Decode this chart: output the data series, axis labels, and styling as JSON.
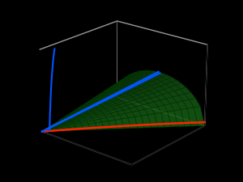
{
  "background_color": "#000000",
  "grid_color": "#999999",
  "surface_facecolor": "#228B22",
  "surface_edgecolor": "#003300",
  "surface_alpha": 0.9,
  "blue_color": "#0055ff",
  "red_color": "#ff2200",
  "green_color": "#00cc00",
  "figsize": [
    3.0,
    2.25
  ],
  "dpi": 100,
  "elev": 22,
  "azim": -50,
  "xlim": [
    0,
    5
  ],
  "ylim": [
    0,
    5
  ],
  "zlim": [
    0,
    4.5
  ],
  "M": 0.9,
  "p0_max": 5.0
}
